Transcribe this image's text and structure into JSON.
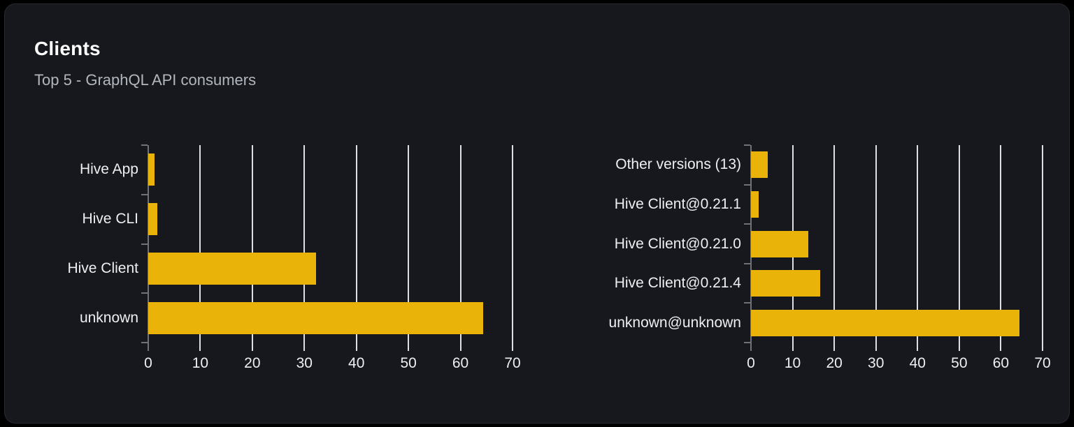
{
  "card": {
    "title": "Clients",
    "subtitle": "Top 5 - GraphQL API consumers"
  },
  "colors": {
    "page_bg": "#000000",
    "card_bg": "#16181d",
    "card_border": "#272a31",
    "bar": "#e9b30a",
    "gridline": "#dbdfe6",
    "axis": "#6e727a",
    "title_text": "#ffffff",
    "subtitle_text": "#b2b6bd",
    "label_text": "#edeff1"
  },
  "chart_data": [
    {
      "type": "bar",
      "orientation": "horizontal",
      "name": "clients-by-name",
      "title": "",
      "categories": [
        "Hive App",
        "Hive CLI",
        "Hive Client",
        "unknown"
      ],
      "values": [
        1.2,
        1.8,
        32.2,
        64.4
      ],
      "xlabel": "",
      "ylabel": "",
      "xlim": [
        0,
        70
      ],
      "xticks": [
        0,
        10,
        20,
        30,
        40,
        50,
        60,
        70
      ],
      "grid": true,
      "legend": "none"
    },
    {
      "type": "bar",
      "orientation": "horizontal",
      "name": "clients-by-version",
      "title": "",
      "categories": [
        "Other versions (13)",
        "Hive Client@0.21.1",
        "Hive Client@0.21.0",
        "Hive Client@0.21.4",
        "unknown@unknown"
      ],
      "values": [
        4.0,
        1.8,
        13.7,
        16.7,
        64.4
      ],
      "xlabel": "",
      "ylabel": "",
      "xlim": [
        0,
        70
      ],
      "xticks": [
        0,
        10,
        20,
        30,
        40,
        50,
        60,
        70
      ],
      "grid": true,
      "legend": "none"
    }
  ]
}
